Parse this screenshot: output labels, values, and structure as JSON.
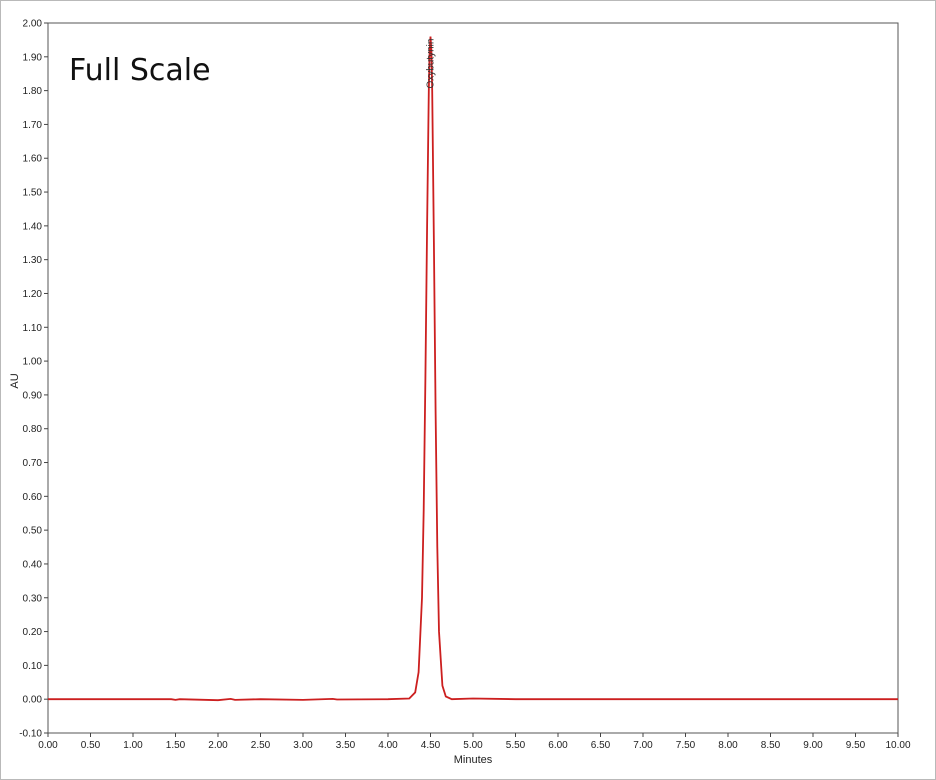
{
  "chart_data": {
    "type": "line",
    "title": "Full Scale",
    "xlabel": "Minutes",
    "ylabel": "AU",
    "xlim": [
      0.0,
      10.0
    ],
    "ylim": [
      -0.1,
      2.0
    ],
    "x_ticks": [
      "0.00",
      "0.50",
      "1.00",
      "1.50",
      "2.00",
      "2.50",
      "3.00",
      "3.50",
      "4.00",
      "4.50",
      "5.00",
      "5.50",
      "6.00",
      "6.50",
      "7.00",
      "7.50",
      "8.00",
      "8.50",
      "9.00",
      "9.50",
      "10.00"
    ],
    "y_ticks": [
      "-0.10",
      "0.00",
      "0.10",
      "0.20",
      "0.30",
      "0.40",
      "0.50",
      "0.60",
      "0.70",
      "0.80",
      "0.90",
      "1.00",
      "1.10",
      "1.20",
      "1.30",
      "1.40",
      "1.50",
      "1.60",
      "1.70",
      "1.80",
      "1.90",
      "2.00"
    ],
    "grid": false,
    "line_color": "#cc1f1f",
    "series": [
      {
        "x": [
          0.0,
          0.5,
          1.0,
          1.45,
          1.5,
          1.55,
          2.0,
          2.15,
          2.2,
          2.5,
          3.0,
          3.35,
          3.4,
          4.0,
          4.25,
          4.32,
          4.36,
          4.4,
          4.42,
          4.44,
          4.46,
          4.48,
          4.49,
          4.5,
          4.51,
          4.52,
          4.54,
          4.56,
          4.58,
          4.6,
          4.64,
          4.68,
          4.75,
          5.0,
          5.5,
          6.0,
          7.0,
          8.0,
          9.0,
          10.0
        ],
        "y": [
          0.0,
          0.0,
          0.0,
          0.0,
          -0.002,
          0.0,
          -0.003,
          0.001,
          -0.002,
          0.0,
          -0.002,
          0.001,
          -0.001,
          0.0,
          0.002,
          0.02,
          0.08,
          0.3,
          0.56,
          0.95,
          1.4,
          1.8,
          1.92,
          1.96,
          1.92,
          1.8,
          1.35,
          0.85,
          0.45,
          0.2,
          0.04,
          0.008,
          0.0,
          0.002,
          0.0,
          0.0,
          0.0,
          0.0,
          0.0,
          0.0
        ]
      }
    ],
    "annotations": [
      {
        "text": "Oxybutynin",
        "x": 4.5,
        "y": 1.96
      }
    ]
  }
}
